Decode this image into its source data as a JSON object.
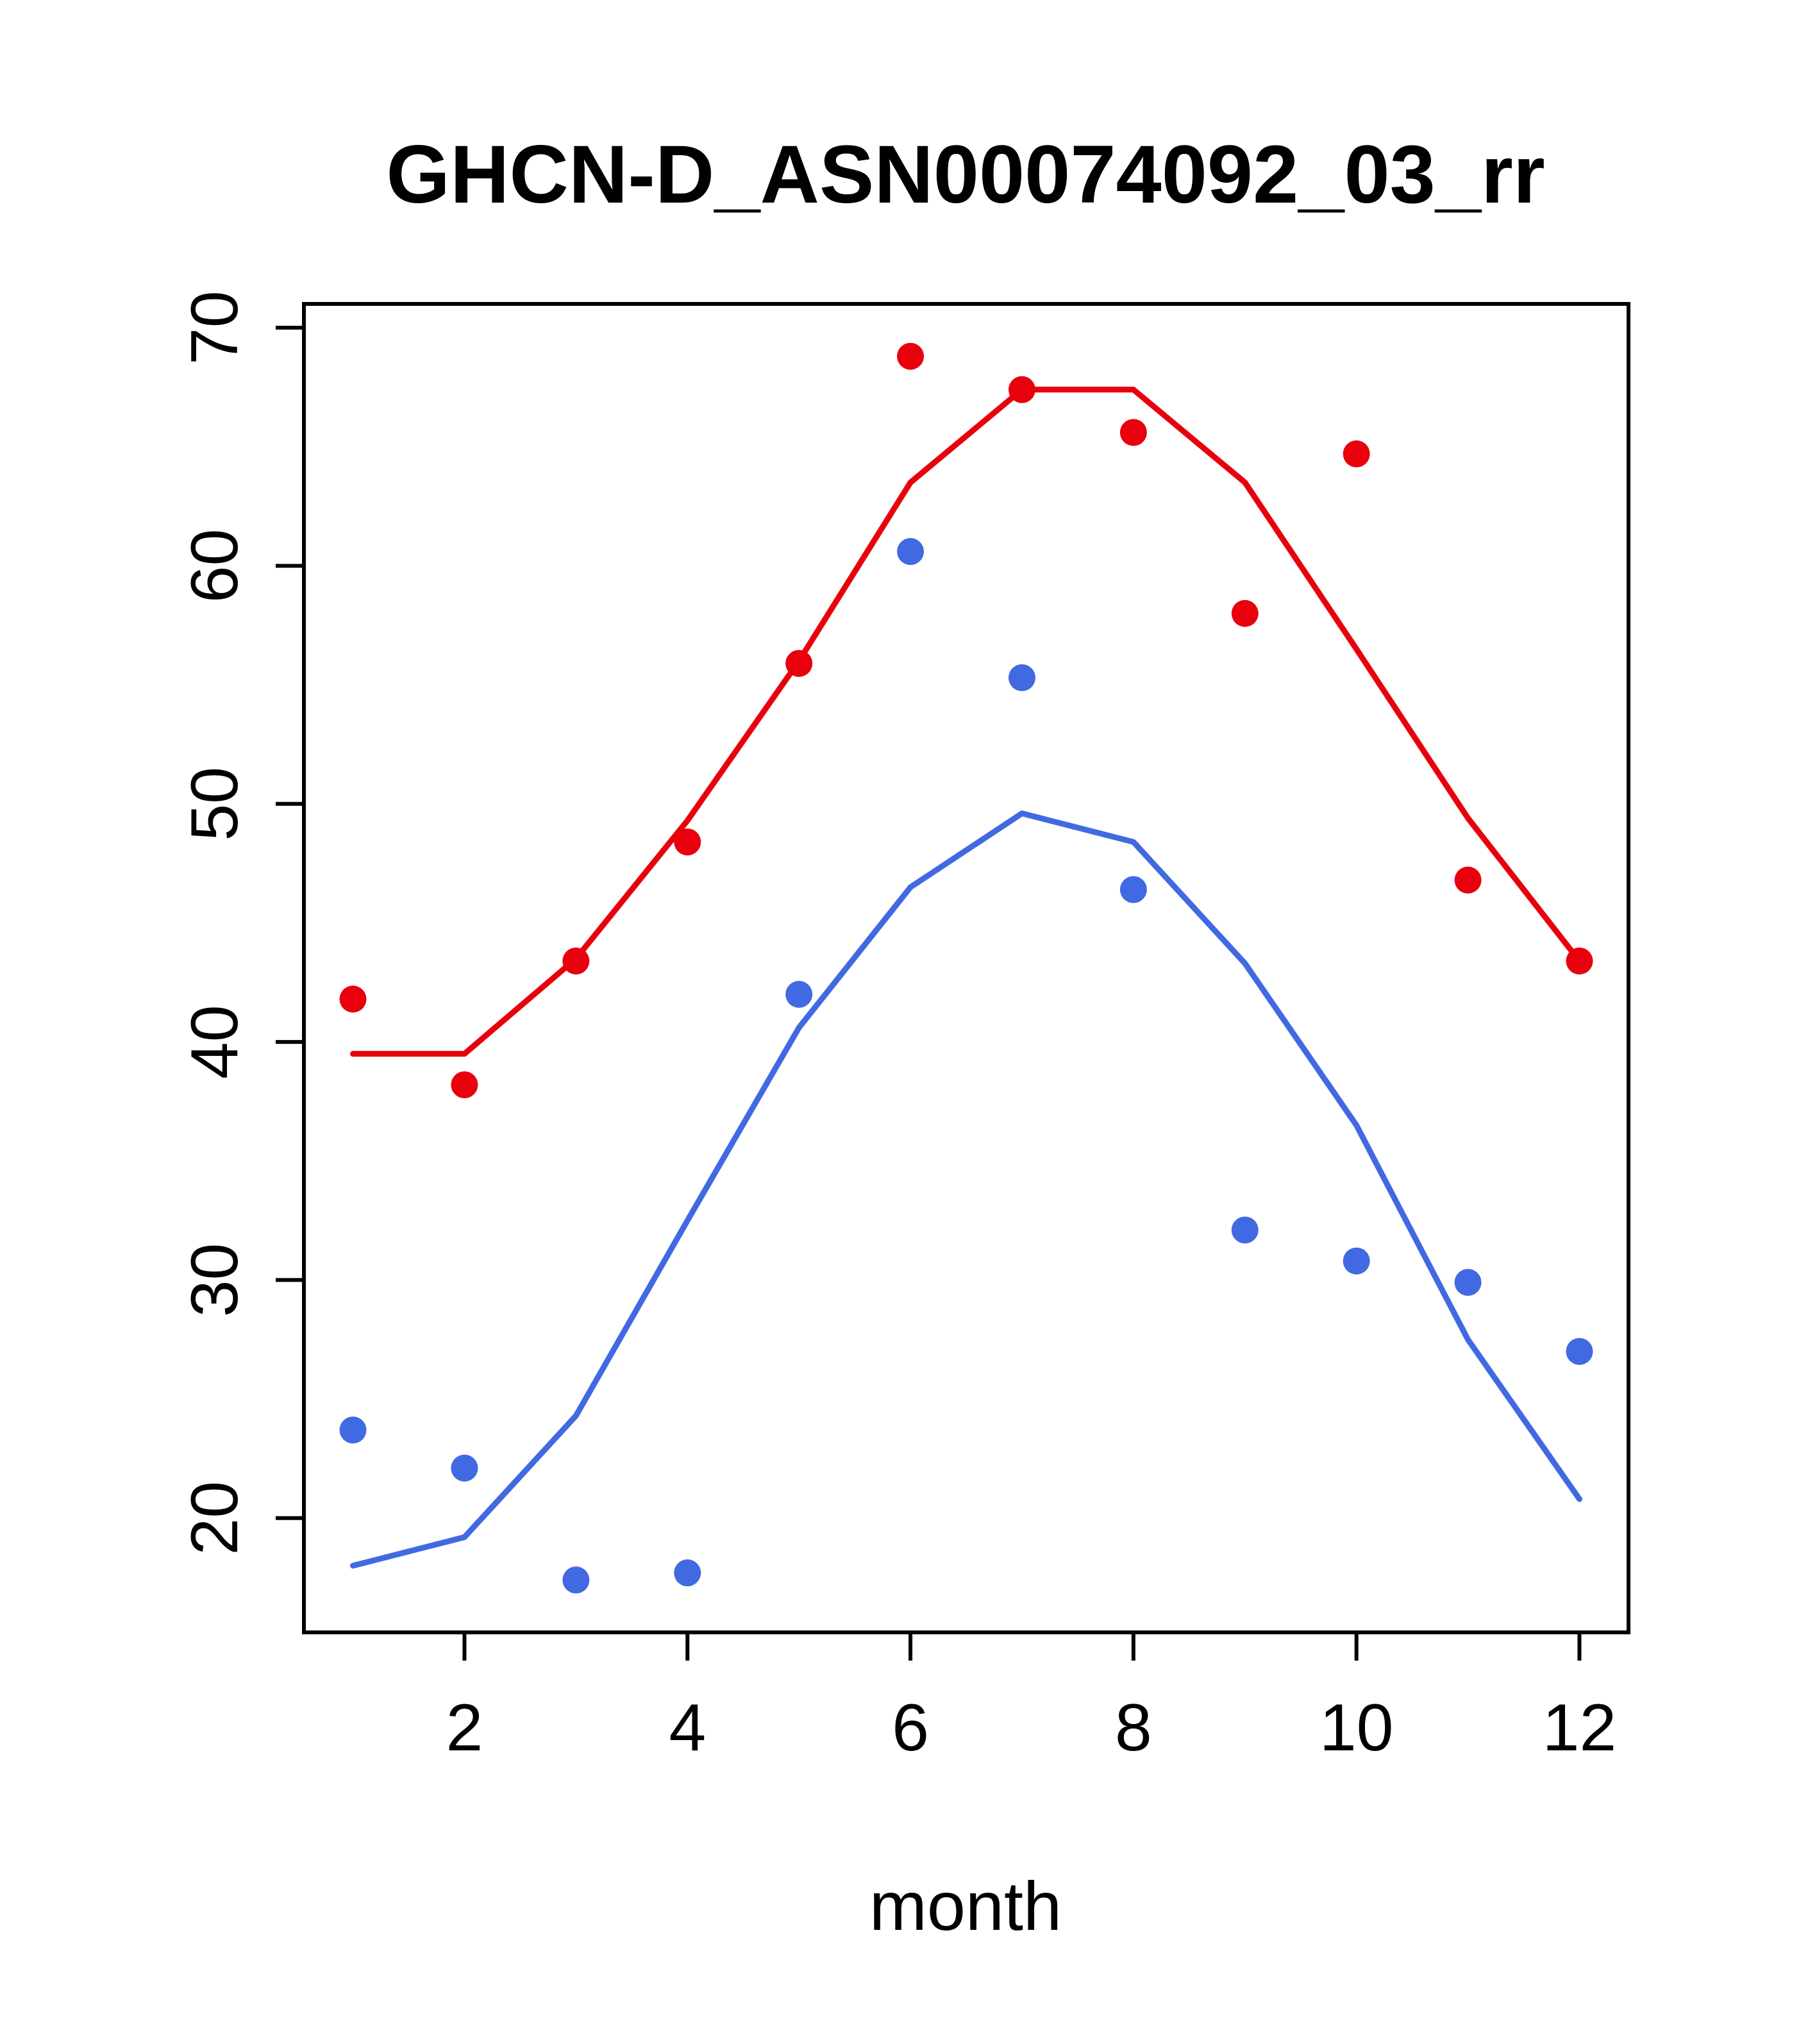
{
  "chart_data": {
    "type": "scatter",
    "title": "GHCN-D_ASN00074092_03_rr",
    "xlabel": "month",
    "ylabel": "",
    "x": [
      1,
      2,
      3,
      4,
      5,
      6,
      7,
      8,
      9,
      10,
      11,
      12
    ],
    "series": [
      {
        "name": "red-points",
        "kind": "points",
        "color": "#e8000d",
        "values": [
          41.8,
          38.2,
          43.4,
          48.4,
          55.9,
          68.8,
          67.4,
          65.6,
          58.0,
          64.7,
          46.8,
          43.4
        ]
      },
      {
        "name": "red-line",
        "kind": "line",
        "color": "#e8000d",
        "values": [
          39.5,
          39.5,
          43.5,
          49.3,
          56.0,
          63.5,
          67.4,
          67.4,
          63.5,
          56.5,
          49.4,
          43.4
        ]
      },
      {
        "name": "blue-points",
        "kind": "points",
        "color": "#4169e1",
        "values": [
          23.7,
          22.1,
          17.4,
          17.7,
          42.0,
          60.6,
          55.3,
          46.4,
          32.1,
          30.8,
          29.9,
          27.0
        ]
      },
      {
        "name": "blue-line",
        "kind": "line",
        "color": "#4169e1",
        "values": [
          18.0,
          19.2,
          24.3,
          32.5,
          40.6,
          46.5,
          49.6,
          48.4,
          43.3,
          36.5,
          27.5,
          20.8
        ]
      }
    ],
    "xticks": [
      2,
      4,
      6,
      8,
      10,
      12
    ],
    "yticks": [
      20,
      30,
      40,
      50,
      60,
      70
    ],
    "xlim": [
      0.56,
      12.44
    ],
    "ylim": [
      15.2,
      71.0
    ],
    "grid": false,
    "legend_position": "none"
  }
}
